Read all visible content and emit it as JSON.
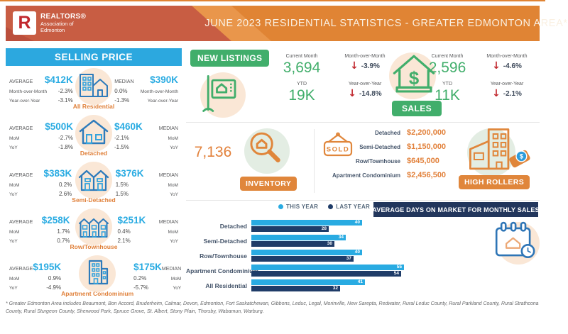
{
  "header": {
    "title": "JUNE 2023 RESIDENTIAL STATISTICS - GREATER EDMONTON AREA*",
    "logo": {
      "monogram": "R",
      "brand": "REALTORS®",
      "line1": "Association of",
      "line2": "Edmonton"
    }
  },
  "selling_price": {
    "title": "SELLING PRICE",
    "rows": [
      {
        "category": "All Residential",
        "avg_label": "AVERAGE",
        "median_label": "MEDIAN",
        "mom_label_left": "Month-over-Month",
        "yoy_label_left": "Year-over-Year",
        "mom_label_right": "Month-over-Month",
        "yoy_label_right": "Year-over-Year",
        "avg": "$412K",
        "avg_mom": "-2.3%",
        "avg_yoy": "-3.1%",
        "median": "$390K",
        "median_mom": "0.0%",
        "median_yoy": "-1.3%"
      },
      {
        "category": "Detached",
        "avg_label": "AVERAGE",
        "median_label": "MEDIAN",
        "mom_label_left": "MoM",
        "yoy_label_left": "YoY",
        "mom_label_right": "MoM",
        "yoy_label_right": "YoY",
        "avg": "$500K",
        "avg_mom": "-2.7%",
        "avg_yoy": "-1.8%",
        "median": "$460K",
        "median_mom": "-2.1%",
        "median_yoy": "-1.5%"
      },
      {
        "category": "Semi-Detached",
        "avg_label": "AVERAGE",
        "median_label": "MEDIAN",
        "mom_label_left": "MoM",
        "yoy_label_left": "YoY",
        "mom_label_right": "MoM",
        "yoy_label_right": "YoY",
        "avg": "$383K",
        "avg_mom": "0.2%",
        "avg_yoy": "2.6%",
        "median": "$376K",
        "median_mom": "1.5%",
        "median_yoy": "1.5%"
      },
      {
        "category": "Row/Townhouse",
        "avg_label": "AVERAGE",
        "median_label": "MEDIAN",
        "mom_label_left": "MoM",
        "yoy_label_left": "YoY",
        "mom_label_right": "MoM",
        "yoy_label_right": "YoY",
        "avg": "$258K",
        "avg_mom": "1.7%",
        "avg_yoy": "0.7%",
        "median": "$251K",
        "median_mom": "0.4%",
        "median_yoy": "2.1%"
      },
      {
        "category": "Apartment Condominium",
        "avg_label": "AVERAGE",
        "median_label": "MEDIAN",
        "mom_label_left": "MoM",
        "yoy_label_left": "YoY",
        "mom_label_right": "MoM",
        "yoy_label_right": "YoY",
        "avg": "$195K",
        "avg_mom": "0.9%",
        "avg_yoy": "-4.9%",
        "median": "$175K",
        "median_mom": "0.2%",
        "median_yoy": "-5.7%"
      }
    ]
  },
  "new_listings": {
    "button": "NEW LISTINGS",
    "current_month_label": "Current Month",
    "current_month": "3,694",
    "mom_label": "Month-over-Month",
    "mom": "-3.9%",
    "ytd_label": "YTD",
    "ytd": "19K",
    "yoy_label": "Year-over-Year",
    "yoy": "-14.8%"
  },
  "sales": {
    "button": "SALES",
    "current_month_label": "Current Month",
    "current_month": "2,596",
    "mom_label": "Month-over-Month",
    "mom": "-4.6%",
    "ytd_label": "YTD",
    "ytd": "11K",
    "yoy_label": "Year-over-Year",
    "yoy": "-2.1%"
  },
  "inventory": {
    "button": "INVENTORY",
    "value": "7,136"
  },
  "high_rollers": {
    "button": "HIGH ROLLERS",
    "sold_sign": "SOLD",
    "rows": [
      {
        "label": "Detached",
        "value": "$2,200,000"
      },
      {
        "label": "Semi-Detached",
        "value": "$1,150,000"
      },
      {
        "label": "Row/Townhouse",
        "value": "$645,000"
      },
      {
        "label": "Apartment Condominium",
        "value": "$2,456,500"
      }
    ]
  },
  "days_on_market": {
    "banner": "AVERAGE DAYS ON MARKET FOR MONTHLY SALES",
    "legend": [
      {
        "label": "THIS YEAR",
        "color": "#29ABE2"
      },
      {
        "label": "LAST YEAR",
        "color": "#1F3C68"
      }
    ]
  },
  "chart_data": {
    "type": "bar",
    "orientation": "horizontal",
    "title": "AVERAGE DAYS ON MARKET FOR MONTHLY SALES",
    "categories": [
      "Detached",
      "Semi-Detached",
      "Row/Townhouse",
      "Apartment Condominium",
      "All Residential"
    ],
    "series": [
      {
        "name": "THIS YEAR",
        "color": "#29ABE2",
        "values": [
          40,
          34,
          40,
          55,
          41
        ]
      },
      {
        "name": "LAST YEAR",
        "color": "#1F3C68",
        "values": [
          28,
          30,
          37,
          54,
          32
        ]
      }
    ],
    "unit": "days",
    "xlim": [
      0,
      60
    ],
    "value_labels": true,
    "legend_position": "top"
  },
  "colors": {
    "header_orange": "#E08434",
    "header_red": "#C85D43",
    "blue": "#29ABE2",
    "navy": "#22365C",
    "green": "#41AE6B",
    "orange": "#E0863B",
    "arrow_red": "#C1272D"
  },
  "footnote": "* Greater Edmonton Area includes Beaumont, Bon Accord, Bruderheim, Calmar, Devon, Edmonton, Fort Saskatchewan, Gibbons, Leduc, Legal, Morinville, New Sarepta, Redwater, Rural Leduc County, Rural Parkland County, Rural Strathcona County, Rural Sturgeon County, Sherwood Park, Spruce Grove, St. Albert, Stony Plain, Thorsby, Wabamun, Warburg."
}
